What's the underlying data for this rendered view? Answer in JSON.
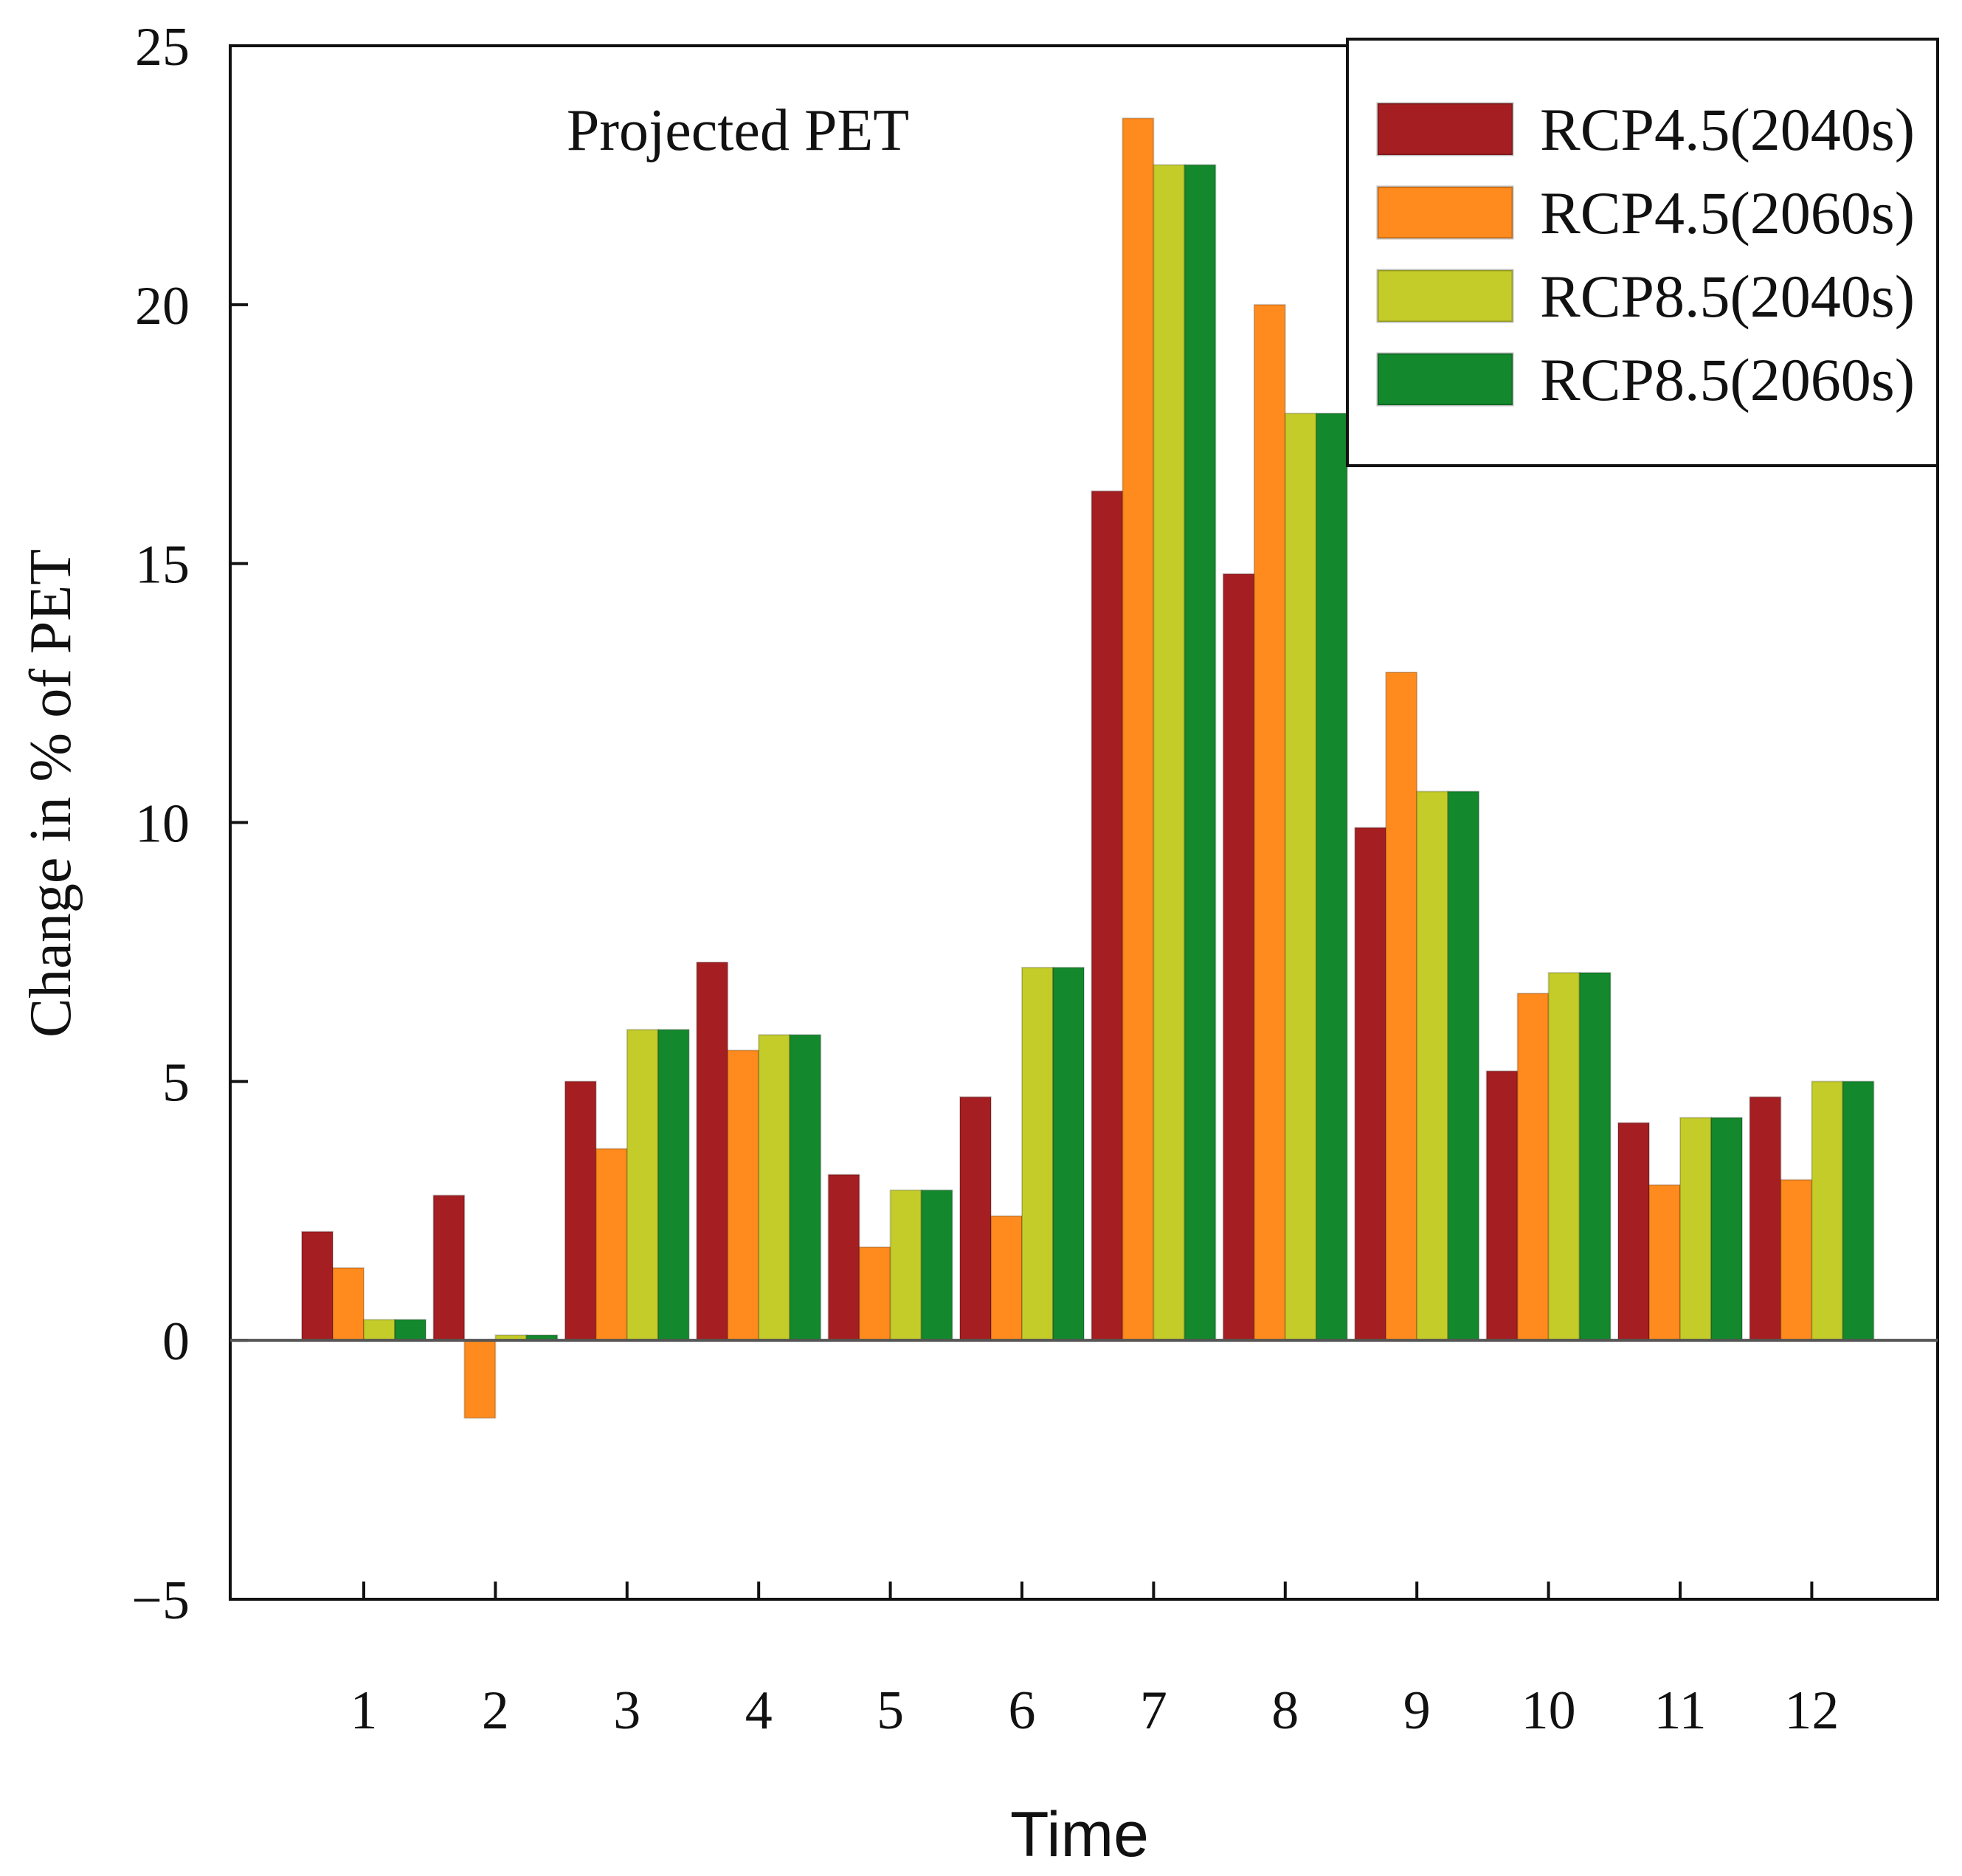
{
  "chart_data": {
    "type": "bar",
    "title": "Projected PET",
    "xlabel": "Time",
    "ylabel": "Change in % of PET",
    "ylim": [
      -5,
      25
    ],
    "yticks": [
      "25",
      "20",
      "15",
      "10",
      "5",
      "0",
      "−5"
    ],
    "ytick_values": [
      25,
      20,
      15,
      10,
      5,
      0,
      -5
    ],
    "categories": [
      "1",
      "2",
      "3",
      "4",
      "5",
      "6",
      "7",
      "8",
      "9",
      "10",
      "11",
      "12"
    ],
    "legend_position": "top-right",
    "series": [
      {
        "name": "RCP4.5(2040s)",
        "color": "#a51f22",
        "values": [
          2.1,
          2.8,
          5.0,
          7.3,
          3.2,
          4.7,
          16.4,
          14.8,
          9.9,
          5.2,
          4.2,
          4.7
        ]
      },
      {
        "name": "RCP4.5(2060s)",
        "color": "#ff8a1d",
        "values": [
          1.4,
          -1.5,
          3.7,
          5.6,
          1.8,
          2.4,
          23.6,
          20.0,
          12.9,
          6.7,
          3.0,
          3.1
        ]
      },
      {
        "name": "RCP8.5(2040s)",
        "color": "#c4cc2a",
        "values": [
          0.4,
          0.1,
          6.0,
          5.9,
          2.9,
          7.2,
          22.7,
          17.9,
          10.6,
          7.1,
          4.3,
          5.0
        ]
      },
      {
        "name": "RCP8.5(2060s)",
        "color": "#13882c",
        "values": [
          0.4,
          0.1,
          6.0,
          5.9,
          2.9,
          7.2,
          22.7,
          17.9,
          10.6,
          7.1,
          4.3,
          5.0
        ]
      }
    ]
  }
}
